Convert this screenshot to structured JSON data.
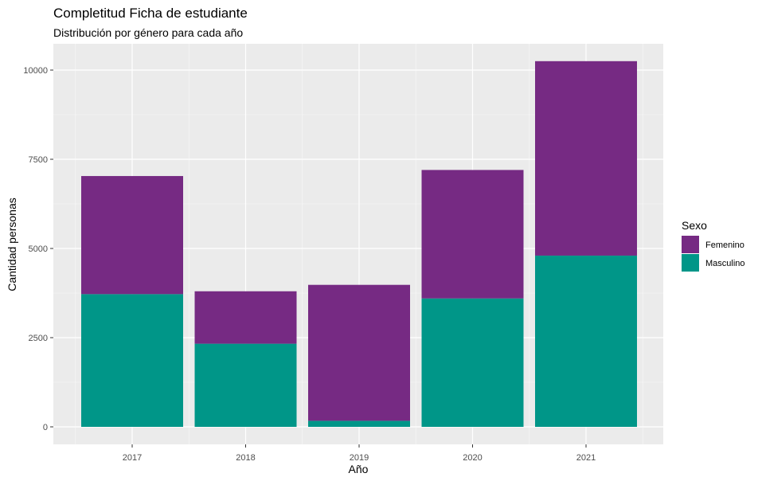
{
  "chart_data": {
    "type": "bar",
    "stacked": true,
    "title": "Completitud Ficha de estudiante",
    "subtitle": "Distribución por género para cada año",
    "xlabel": "Año",
    "ylabel": "Cantidad personas",
    "categories": [
      "2017",
      "2018",
      "2019",
      "2020",
      "2021"
    ],
    "series": [
      {
        "name": "Masculino",
        "color": "#009688",
        "values": [
          3720,
          2330,
          170,
          3600,
          4800
        ]
      },
      {
        "name": "Femenino",
        "color": "#762a83",
        "values": [
          3310,
          1470,
          3810,
          3600,
          5450
        ]
      }
    ],
    "ylim": [
      0,
      10600
    ],
    "yticks": [
      0,
      2500,
      5000,
      7500,
      10000
    ],
    "ytick_labels": [
      "0",
      "2500",
      "5000",
      "7500",
      "10000"
    ],
    "grid": true,
    "panel_background": "#ebebeb",
    "legend": {
      "title": "Sexo",
      "position": "right",
      "entries": [
        {
          "label": "Femenino",
          "color": "#762a83"
        },
        {
          "label": "Masculino",
          "color": "#009688"
        }
      ]
    }
  }
}
